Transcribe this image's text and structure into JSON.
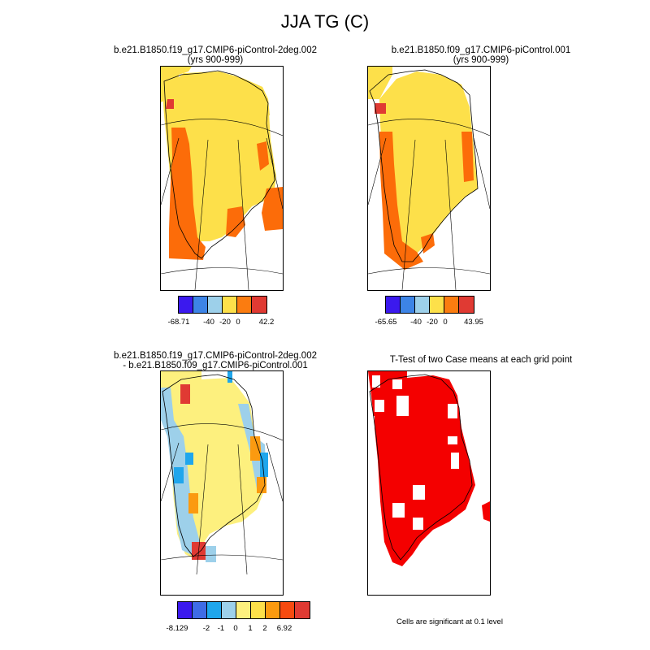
{
  "title": "JJA TG (C)",
  "panels": {
    "p1": {
      "title_line1": "b.e21.B1850.f19_g17.CMIP6-piControl-2deg.002",
      "title_line2": "(yrs 900-999)"
    },
    "p2": {
      "title_line1": "b.e21.B1850.f09_g17.CMIP6-piControl.001",
      "title_line2": "(yrs 900-999)"
    },
    "p3": {
      "title_line1": "b.e21.B1850.f19_g17.CMIP6-piControl-2deg.002",
      "title_line2": "- b.e21.B1850.f09_g17.CMIP6-piControl.001"
    },
    "p4": {
      "title_line1": "T-Test of two Case means at each grid point"
    }
  },
  "colorbars": {
    "cb1": {
      "colors": [
        "#3b19ee",
        "#3d84e6",
        "#9dd0ea",
        "#fde04a",
        "#fb7c10",
        "#e03a33"
      ],
      "labels": [
        "-68.71",
        "-40",
        "-20",
        "0",
        "42.2"
      ]
    },
    "cb2": {
      "colors": [
        "#3b19ee",
        "#3d84e6",
        "#9dd0ea",
        "#fde04a",
        "#fb7c10",
        "#e03a33"
      ],
      "labels": [
        "-65.65",
        "-40",
        "-20",
        "0",
        "43.95"
      ]
    },
    "cb3": {
      "colors": [
        "#3b19ee",
        "#3f6ce6",
        "#1fa6ec",
        "#9dd0ea",
        "#fdf07e",
        "#fde04a",
        "#fb9a10",
        "#f74a10",
        "#e03a33"
      ],
      "labels": [
        "-8.129",
        "-2",
        "-1",
        "0",
        "1",
        "2",
        "6.92"
      ]
    }
  },
  "significance_note": "Cells are significant at 0.1 level",
  "map_colors": {
    "yellow": "#fde04a",
    "orange": "#fc6c09",
    "red": "#e03a33",
    "lightblue": "#9dd0ea",
    "paleyellow": "#fdf07e",
    "sigred": "#f40000"
  }
}
